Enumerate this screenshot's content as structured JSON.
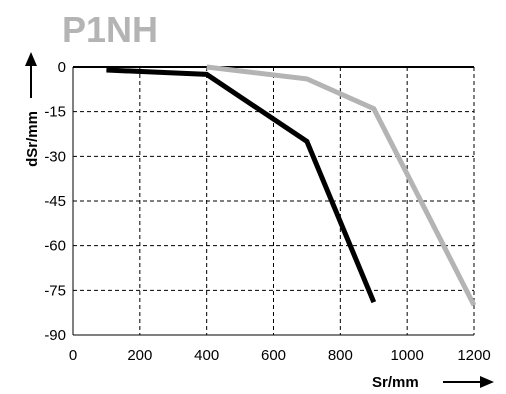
{
  "chart_data": {
    "type": "line",
    "title": "P1NH",
    "xlabel": "Sr/mm",
    "ylabel": "dSr/mm",
    "xlim": [
      0,
      1200
    ],
    "ylim": [
      -90,
      0
    ],
    "xticks": [
      0,
      200,
      400,
      600,
      800,
      1000,
      1200
    ],
    "yticks": [
      0,
      -15,
      -30,
      -45,
      -60,
      -75,
      -90
    ],
    "x_tick_labels": [
      "0",
      "200",
      "400",
      "600",
      "800",
      "1000",
      "1200"
    ],
    "y_tick_labels": [
      "0",
      "-15",
      "-30",
      "-45",
      "-60",
      "-75",
      "-90"
    ],
    "grid": true,
    "series": [
      {
        "color": "#000000",
        "x": [
          100,
          400,
          700,
          900
        ],
        "y": [
          -1,
          -2.5,
          -25,
          -79
        ]
      },
      {
        "color": "#b4b4b4",
        "x": [
          400,
          700,
          900,
          1200
        ],
        "y": [
          0,
          -4,
          -14,
          -80
        ]
      }
    ]
  }
}
